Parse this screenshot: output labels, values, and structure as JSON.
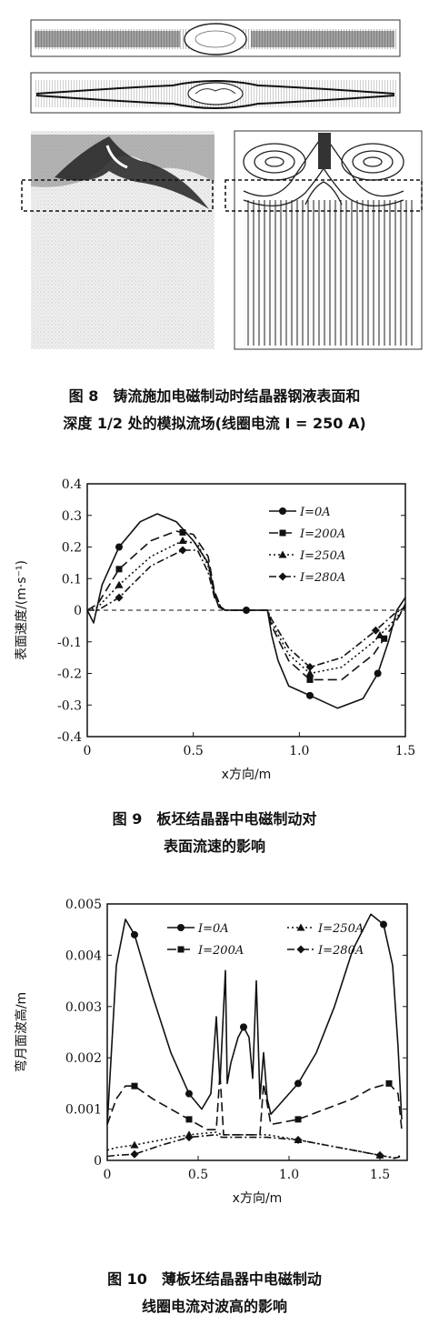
{
  "fig8": {
    "caption_line1": "图 8　铸流施加电磁制动时结晶器钢液表面和",
    "caption_line2": "深度 1/2 处的模拟流场(线圈电流 I = 250 A)"
  },
  "fig9": {
    "caption_line1": "图 9　板坯结晶器中电磁制动对",
    "caption_line2": "表面流速的影响"
  },
  "fig10": {
    "caption_line1": "图 10　薄板坯结晶器中电磁制动",
    "caption_line2": "线圈电流对波高的影响"
  },
  "chart_data": [
    {
      "type": "line",
      "title": "",
      "xlabel": "x方向/m",
      "ylabel": "表面速度/(m·s⁻¹)",
      "xlim": [
        0,
        1.5
      ],
      "ylim": [
        -0.4,
        0.4
      ],
      "xticks": [
        "0",
        "0.5",
        "1.0",
        "1.5"
      ],
      "yticks": [
        "0.4",
        "0.3",
        "0.2",
        "0.1",
        "0",
        "-0.1",
        "-0.2",
        "-0.3",
        "-0.4"
      ],
      "legend_position": "top-right",
      "series": [
        {
          "name": "I=0A",
          "style": "solid",
          "marker": "circle",
          "x": [
            0,
            0.03,
            0.07,
            0.15,
            0.25,
            0.33,
            0.42,
            0.5,
            0.57,
            0.6,
            0.62,
            0.65,
            0.75,
            0.85,
            0.87,
            0.9,
            0.95,
            1.05,
            1.18,
            1.3,
            1.37,
            1.42,
            1.46,
            1.5
          ],
          "y": [
            0,
            -0.04,
            0.08,
            0.2,
            0.28,
            0.305,
            0.28,
            0.22,
            0.15,
            0.05,
            0.01,
            0,
            0,
            0,
            -0.08,
            -0.16,
            -0.24,
            -0.27,
            -0.31,
            -0.28,
            -0.2,
            -0.1,
            0,
            0.04
          ],
          "markers_x": [
            0.15,
            0.75,
            1.05,
            1.37
          ]
        },
        {
          "name": "I=200A",
          "style": "dash",
          "marker": "square",
          "x": [
            0,
            0.05,
            0.15,
            0.3,
            0.42,
            0.5,
            0.57,
            0.6,
            0.63,
            0.65,
            0.85,
            0.87,
            0.95,
            1.05,
            1.2,
            1.35,
            1.42,
            1.47,
            1.5
          ],
          "y": [
            0,
            0.02,
            0.13,
            0.22,
            0.25,
            0.24,
            0.17,
            0.06,
            0.01,
            0,
            0,
            -0.05,
            -0.16,
            -0.22,
            -0.22,
            -0.14,
            -0.07,
            -0.02,
            0.02
          ],
          "markers_x": [
            0.15,
            0.45,
            1.05,
            1.4
          ]
        },
        {
          "name": "I=250A",
          "style": "dot",
          "marker": "triangle",
          "x": [
            0,
            0.05,
            0.15,
            0.3,
            0.45,
            0.52,
            0.57,
            0.6,
            0.63,
            0.65,
            0.85,
            0.87,
            0.95,
            1.05,
            1.2,
            1.35,
            1.45,
            1.5
          ],
          "y": [
            0,
            0.01,
            0.08,
            0.17,
            0.22,
            0.21,
            0.14,
            0.05,
            0.01,
            0,
            0,
            -0.04,
            -0.14,
            -0.2,
            -0.18,
            -0.1,
            -0.03,
            0.01
          ],
          "markers_x": [
            0.15,
            0.45,
            1.05,
            1.38
          ]
        },
        {
          "name": "I=280A",
          "style": "dashdot",
          "marker": "diamond",
          "x": [
            0,
            0.05,
            0.15,
            0.3,
            0.45,
            0.52,
            0.57,
            0.6,
            0.63,
            0.65,
            0.85,
            0.87,
            0.95,
            1.05,
            1.2,
            1.35,
            1.45,
            1.5
          ],
          "y": [
            0,
            0.0,
            0.04,
            0.14,
            0.19,
            0.19,
            0.12,
            0.04,
            0.01,
            0,
            0,
            -0.03,
            -0.12,
            -0.18,
            -0.15,
            -0.07,
            -0.01,
            0.01
          ],
          "markers_x": [
            0.15,
            0.45,
            1.05,
            1.36
          ]
        }
      ]
    },
    {
      "type": "line",
      "title": "",
      "xlabel": "x方向/m",
      "ylabel": "弯月面波高/m",
      "xlim": [
        0,
        1.65
      ],
      "ylim": [
        0,
        0.005
      ],
      "xticks": [
        "0",
        "0.5",
        "1.0",
        "1.5"
      ],
      "yticks": [
        "0.005",
        "0.004",
        "0.003",
        "0.002",
        "0.001",
        "0"
      ],
      "legend_position": "top",
      "series": [
        {
          "name": "I=0A",
          "style": "solid",
          "marker": "circle",
          "x": [
            0,
            0.05,
            0.1,
            0.15,
            0.25,
            0.35,
            0.45,
            0.52,
            0.57,
            0.6,
            0.62,
            0.65,
            0.66,
            0.68,
            0.72,
            0.75,
            0.78,
            0.8,
            0.82,
            0.84,
            0.86,
            0.88,
            0.9,
            0.95,
            1.05,
            1.15,
            1.25,
            1.35,
            1.45,
            1.52,
            1.57,
            1.6,
            1.62
          ],
          "y": [
            0.0007,
            0.0038,
            0.0047,
            0.0044,
            0.0032,
            0.0021,
            0.0013,
            0.001,
            0.0013,
            0.0028,
            0.0015,
            0.0037,
            0.0015,
            0.0019,
            0.0024,
            0.0026,
            0.0024,
            0.0016,
            0.0035,
            0.0012,
            0.0021,
            0.0012,
            0.0009,
            0.0011,
            0.0015,
            0.0021,
            0.003,
            0.0041,
            0.0048,
            0.0046,
            0.0038,
            0.0022,
            0.0008
          ],
          "markers_x": [
            0.15,
            0.45,
            0.75,
            1.05,
            1.52
          ]
        },
        {
          "name": "I=200A",
          "style": "dash",
          "marker": "square",
          "x": [
            0,
            0.05,
            0.1,
            0.15,
            0.25,
            0.35,
            0.45,
            0.55,
            0.6,
            0.62,
            0.64,
            0.84,
            0.86,
            0.9,
            1.05,
            1.2,
            1.35,
            1.45,
            1.55,
            1.6,
            1.62
          ],
          "y": [
            0.0007,
            0.0012,
            0.00145,
            0.00145,
            0.0012,
            0.001,
            0.0008,
            0.0006,
            0.0006,
            0.0017,
            0.0005,
            0.0005,
            0.0015,
            0.0007,
            0.0008,
            0.001,
            0.0012,
            0.0014,
            0.0015,
            0.0013,
            0.0006
          ],
          "markers_x": [
            0.15,
            0.45,
            1.05,
            1.55
          ]
        },
        {
          "name": "I=250A",
          "style": "dot",
          "marker": "triangle",
          "x": [
            0,
            0.05,
            0.15,
            0.3,
            0.45,
            0.6,
            0.63,
            0.85,
            0.88,
            1.05,
            1.2,
            1.35,
            1.5,
            1.58,
            1.62
          ],
          "y": [
            0.0002,
            0.00025,
            0.0003,
            0.0004,
            0.0005,
            0.00055,
            0.0005,
            0.0005,
            0.0005,
            0.0004,
            0.0003,
            0.0002,
            0.0001,
            5e-05,
            0.0001
          ],
          "markers_x": [
            0.15,
            0.45,
            1.05,
            1.5
          ]
        },
        {
          "name": "I=280A",
          "style": "dashdot",
          "marker": "diamond",
          "x": [
            0,
            0.05,
            0.15,
            0.3,
            0.45,
            0.6,
            0.63,
            0.85,
            0.88,
            1.05,
            1.2,
            1.35,
            1.5,
            1.58,
            1.62
          ],
          "y": [
            8e-05,
            0.0001,
            0.00012,
            0.0003,
            0.00045,
            0.0005,
            0.00045,
            0.00045,
            0.00045,
            0.0004,
            0.0003,
            0.0002,
            0.0001,
            4e-05,
            8e-05
          ],
          "markers_x": [
            0.15,
            0.45,
            1.05,
            1.5
          ]
        }
      ]
    }
  ]
}
